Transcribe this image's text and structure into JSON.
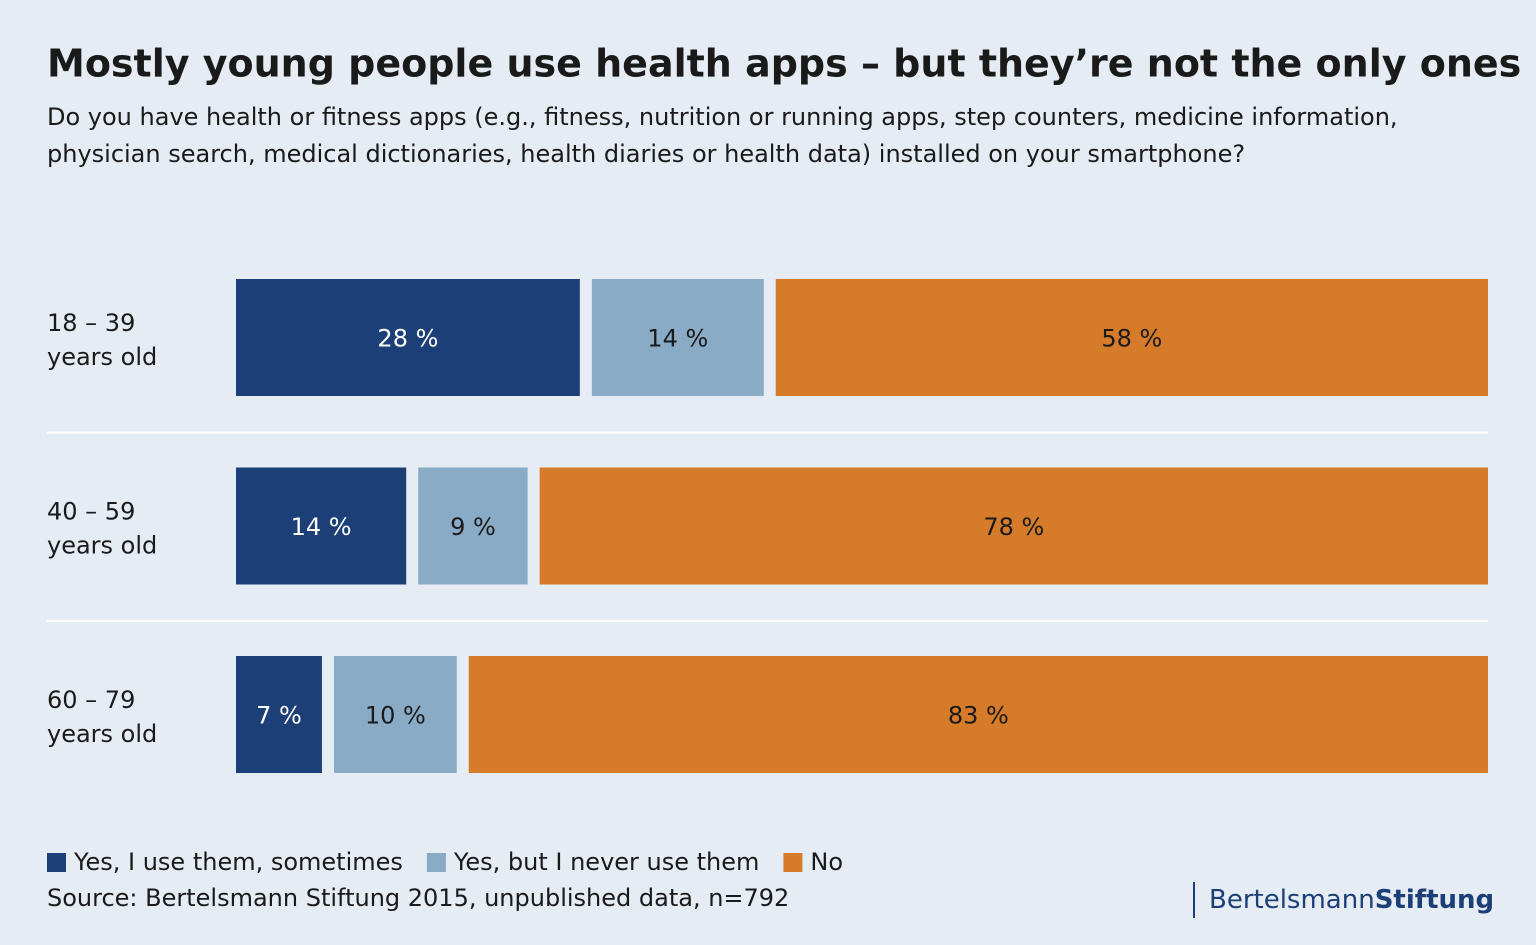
{
  "chart_data": {
    "type": "bar",
    "orientation": "horizontal",
    "stacked": true,
    "title": "Mostly young people use health apps – but they’re not the only ones",
    "subtitle": [
      "Do you have health or fitness apps (e.g., fitness, nutrition or running apps, step counters, medicine information,",
      "physician search, medical dictionaries, health diaries or health data) installed on your smartphone?"
    ],
    "categories": [
      [
        "18 – 39",
        "years old"
      ],
      [
        "40 – 59",
        "years old"
      ],
      [
        "60 – 79",
        "years old"
      ]
    ],
    "series": [
      {
        "name": "Yes, I use them, sometimes",
        "color": "#1c3f78",
        "values": [
          28,
          14,
          7
        ],
        "value_labels": [
          "28 %",
          "14 %",
          "7 %"
        ]
      },
      {
        "name": "Yes, but I never use them",
        "color": "#8aabc6",
        "values": [
          14,
          9,
          10
        ],
        "value_labels": [
          "14 %",
          "9 %",
          "10 %"
        ]
      },
      {
        "name": "No",
        "color": "#d57b2a",
        "values": [
          58,
          78,
          83
        ],
        "value_labels": [
          "58 %",
          "78 %",
          "83 %"
        ]
      }
    ],
    "source": "Source: Bertelsmann Stiftung 2015, unpublished data, n=792",
    "logo": [
      "Bertelsmann",
      "Stiftung"
    ]
  }
}
